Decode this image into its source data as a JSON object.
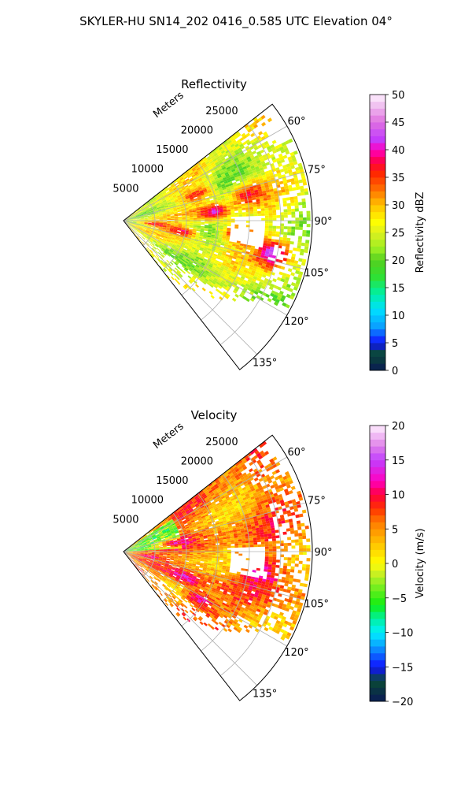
{
  "figure": {
    "title": "SKYLER-HU  SN14_202  0416_0.585 UTC Elevation 04°"
  },
  "chart_data": [
    {
      "type": "heatmap",
      "projection": "polar-sector",
      "title": "Reflectivity",
      "radial_axis_label": "Meters",
      "radial_ticks": [
        5000,
        10000,
        15000,
        20000,
        25000
      ],
      "radial_tick_labels": [
        "5000",
        "10000",
        "15000",
        "20000",
        "25000"
      ],
      "radial_range": [
        0,
        30000
      ],
      "azimuth_range_deg": [
        52,
        142
      ],
      "azimuth_ticks_deg": [
        60,
        75,
        90,
        105,
        120,
        135
      ],
      "azimuth_tick_labels": [
        "60°",
        "75°",
        "90°",
        "105°",
        "120°",
        "135°"
      ],
      "grid": true,
      "colorbar": {
        "label": "Reflectivity dBZ",
        "range": [
          0,
          50
        ],
        "ticks": [
          0,
          5,
          10,
          15,
          20,
          25,
          30,
          35,
          40,
          45,
          50
        ],
        "tick_labels": [
          "0",
          "5",
          "10",
          "15",
          "20",
          "25",
          "30",
          "35",
          "40",
          "45",
          "50"
        ],
        "stops": [
          {
            "v": 0,
            "c": "#0a1a55"
          },
          {
            "v": 3,
            "c": "#0a4a35"
          },
          {
            "v": 5,
            "c": "#1010ff"
          },
          {
            "v": 8,
            "c": "#0aa0ff"
          },
          {
            "v": 11,
            "c": "#00e0ff"
          },
          {
            "v": 14,
            "c": "#00f0a0"
          },
          {
            "v": 17,
            "c": "#30e030"
          },
          {
            "v": 20,
            "c": "#55d020"
          },
          {
            "v": 22,
            "c": "#99ee22"
          },
          {
            "v": 25,
            "c": "#ddf020"
          },
          {
            "v": 27,
            "c": "#ffff00"
          },
          {
            "v": 30,
            "c": "#ffc000"
          },
          {
            "v": 33,
            "c": "#ff6a00"
          },
          {
            "v": 36,
            "c": "#ff2000"
          },
          {
            "v": 38,
            "c": "#ff0050"
          },
          {
            "v": 40,
            "c": "#ff00c0"
          },
          {
            "v": 42,
            "c": "#c040ff"
          },
          {
            "v": 45,
            "c": "#e070e0"
          },
          {
            "v": 48,
            "c": "#f0c0f0"
          },
          {
            "v": 50,
            "c": "#fff0ff"
          }
        ]
      },
      "field_summary": {
        "background_range": [
          18,
          32
        ],
        "cores": [
          {
            "range_m": 14000,
            "azimuth_deg": 84,
            "value": 40
          },
          {
            "range_m": 18000,
            "azimuth_deg": 96,
            "value": 38
          },
          {
            "range_m": 9000,
            "azimuth_deg": 100,
            "value": 38
          },
          {
            "range_m": 20000,
            "azimuth_deg": 78,
            "value": 37
          },
          {
            "range_m": 24000,
            "azimuth_deg": 102,
            "value": 43
          },
          {
            "range_m": 5000,
            "azimuth_deg": 96,
            "value": 37
          },
          {
            "range_m": 12000,
            "azimuth_deg": 70,
            "value": 36
          }
        ],
        "empty_region": {
          "range_m": [
            17000,
            22000
          ],
          "azimuth_deg": [
            88,
            100
          ]
        }
      }
    },
    {
      "type": "heatmap",
      "projection": "polar-sector",
      "title": "Velocity",
      "radial_axis_label": "Meters",
      "radial_ticks": [
        5000,
        10000,
        15000,
        20000,
        25000
      ],
      "radial_tick_labels": [
        "5000",
        "10000",
        "15000",
        "20000",
        "25000"
      ],
      "radial_range": [
        0,
        30000
      ],
      "azimuth_range_deg": [
        52,
        142
      ],
      "azimuth_ticks_deg": [
        60,
        75,
        90,
        105,
        120,
        135
      ],
      "azimuth_tick_labels": [
        "60°",
        "75°",
        "90°",
        "105°",
        "120°",
        "135°"
      ],
      "grid": true,
      "colorbar": {
        "label": "Velocity (m/s)",
        "range": [
          -20,
          20
        ],
        "ticks": [
          -20,
          -15,
          -10,
          -5,
          0,
          5,
          10,
          15,
          20
        ],
        "tick_labels": [
          "−20",
          "−15",
          "−10",
          "−5",
          "0",
          "5",
          "10",
          "15",
          "20"
        ],
        "stops": [
          {
            "v": -20,
            "c": "#0a1a55"
          },
          {
            "v": -17,
            "c": "#0a4a35"
          },
          {
            "v": -15,
            "c": "#1010ff"
          },
          {
            "v": -12,
            "c": "#0aa0ff"
          },
          {
            "v": -10,
            "c": "#00f0ff"
          },
          {
            "v": -8,
            "c": "#00f0a0"
          },
          {
            "v": -6,
            "c": "#10ee10"
          },
          {
            "v": -3,
            "c": "#88ee22"
          },
          {
            "v": -1,
            "c": "#ddf020"
          },
          {
            "v": 0,
            "c": "#ffff00"
          },
          {
            "v": 3,
            "c": "#ffc000"
          },
          {
            "v": 6,
            "c": "#ff7a00"
          },
          {
            "v": 8,
            "c": "#ff3000"
          },
          {
            "v": 10,
            "c": "#ff0040"
          },
          {
            "v": 12,
            "c": "#ff00c0"
          },
          {
            "v": 15,
            "c": "#c040ff"
          },
          {
            "v": 17,
            "c": "#e080e8"
          },
          {
            "v": 20,
            "c": "#fff0ff"
          }
        ]
      },
      "field_summary": {
        "background_range": [
          0,
          10
        ],
        "cores": [
          {
            "range_m": 10000,
            "azimuth_deg": 112,
            "value": 13
          },
          {
            "range_m": 8000,
            "azimuth_deg": 80,
            "value": 12
          },
          {
            "range_m": 22000,
            "azimuth_deg": 98,
            "value": 12
          },
          {
            "range_m": 14000,
            "azimuth_deg": 122,
            "value": 11
          },
          {
            "range_m": 4000,
            "azimuth_deg": 100,
            "value": 11
          }
        ],
        "low_region": {
          "range_m": [
            0,
            9000
          ],
          "azimuth_deg": [
            56,
            86
          ],
          "value": -4
        },
        "empty_region": {
          "range_m": [
            17000,
            22000
          ],
          "azimuth_deg": [
            88,
            100
          ]
        }
      }
    }
  ]
}
